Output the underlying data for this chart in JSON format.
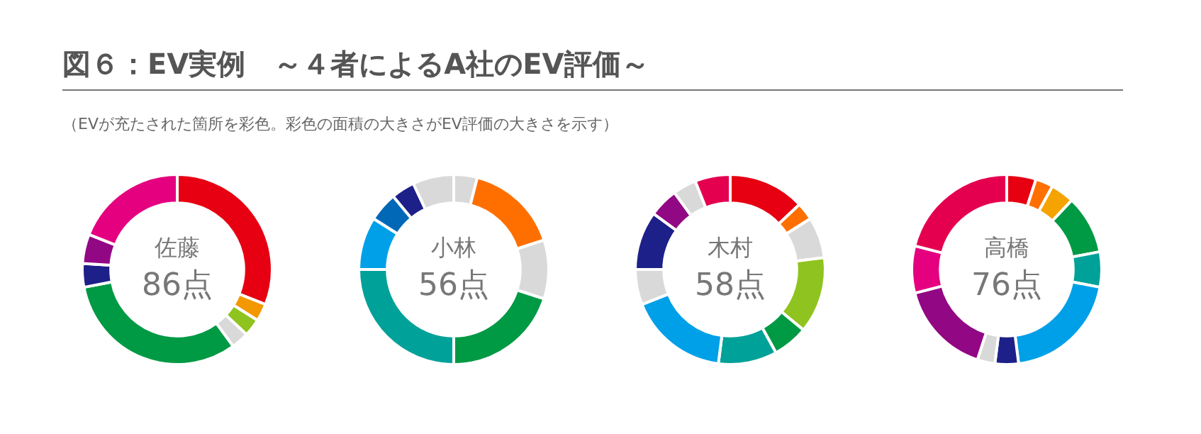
{
  "chart_data": [
    {
      "type": "donut",
      "title": "図６：EV実例　～４者によるA社のEV評価～",
      "subtitle": "（EVが充たされた箇所を彩色。彩色の面積の大きさがEV評価の大きさを示す）",
      "annotations": [
        "佐藤",
        "86点"
      ],
      "legend": false,
      "categories": [
        null,
        null,
        null,
        null,
        null,
        null,
        null,
        null
      ],
      "values": [
        31,
        3,
        3,
        3,
        32,
        4,
        5,
        19
      ],
      "colors": [
        "#e60012",
        "#f39800",
        "#8fc31f",
        "#d9d9d9",
        "#009944",
        "#1d2088",
        "#920783",
        "#e4007f"
      ]
    },
    {
      "type": "donut",
      "annotations": [
        "小林",
        "56点"
      ],
      "legend": false,
      "categories": [
        null,
        null,
        null,
        null,
        null,
        null,
        null,
        null,
        null
      ],
      "values": [
        4,
        16,
        10,
        20,
        25,
        9,
        5,
        4,
        7
      ],
      "colors": [
        "#d9d9d9",
        "#ff6f00",
        "#d9d9d9",
        "#009944",
        "#00a199",
        "#00a0e9",
        "#0068b7",
        "#1d2088",
        "#d9d9d9"
      ]
    },
    {
      "type": "donut",
      "annotations": [
        "木村",
        "58点"
      ],
      "legend": false,
      "categories": [
        null,
        null,
        null,
        null,
        null,
        null,
        null,
        null,
        null,
        null,
        null,
        null
      ],
      "values": [
        13,
        3,
        7,
        13,
        6,
        10,
        17,
        6,
        10,
        5,
        4,
        6
      ],
      "colors": [
        "#e60012",
        "#ff6f00",
        "#d9d9d9",
        "#8fc31f",
        "#009944",
        "#00a199",
        "#00a0e9",
        "#d9d9d9",
        "#1d2088",
        "#920783",
        "#d9d9d9",
        "#e5004f"
      ]
    },
    {
      "type": "donut",
      "annotations": [
        "高橋",
        "76点"
      ],
      "legend": false,
      "categories": [
        null,
        null,
        null,
        null,
        null,
        null,
        null,
        null,
        null,
        null,
        null
      ],
      "values": [
        5,
        3,
        4,
        10,
        6,
        20,
        4,
        3,
        16,
        8,
        21
      ],
      "colors": [
        "#e60012",
        "#ff6f00",
        "#f5a300",
        "#009944",
        "#00a199",
        "#00a0e9",
        "#1d2088",
        "#d9d9d9",
        "#920783",
        "#e4007f",
        "#e5004f"
      ]
    }
  ]
}
